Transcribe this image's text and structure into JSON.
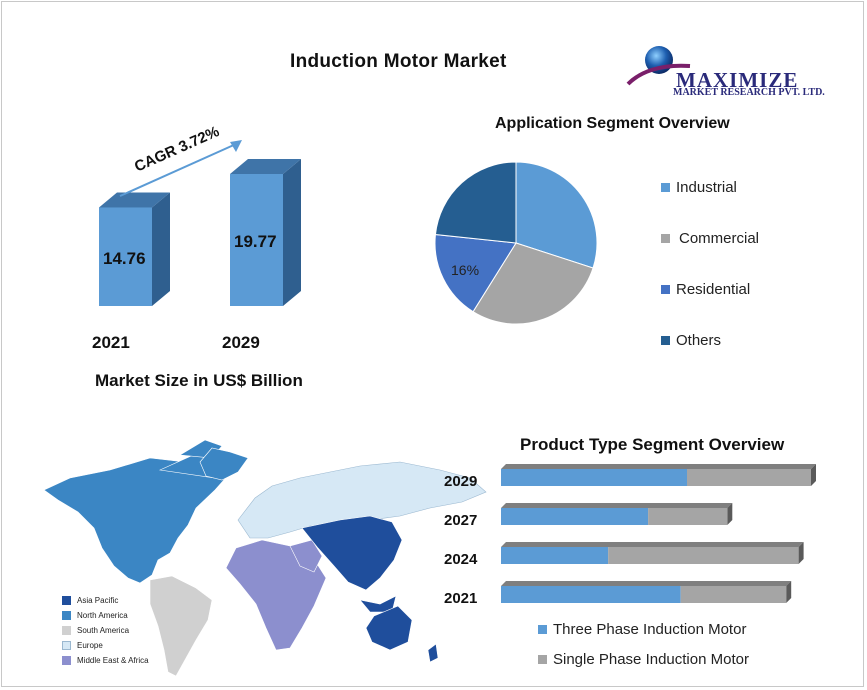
{
  "title": "Induction Motor Market",
  "logo": {
    "name": "MAXIMIZE",
    "tagline": "MARKET RESEARCH PVT. LTD."
  },
  "colors": {
    "three_phase": "#5b9bd5",
    "single_phase": "#a5a5a5",
    "industrial": "#5b9bd5",
    "commercial": "#a5a5a5",
    "residential": "#4472c4",
    "others": "#255e91"
  },
  "chart_data": [
    {
      "type": "bar",
      "categories": [
        "2021",
        "2029"
      ],
      "values": [
        14.76,
        19.77
      ],
      "data_labels": [
        "14.76",
        "19.77"
      ],
      "annotation": "CAGR 3.72%",
      "xlabel": "Market Size in US$ Billion"
    },
    {
      "type": "pie",
      "title": "Application Segment Overview",
      "labels": [
        "Industrial",
        "Commercial",
        "Residential",
        "Others"
      ],
      "values": [
        27,
        26,
        16,
        21
      ],
      "visible_label": "16%",
      "legend": "right"
    },
    {
      "type": "bar",
      "orientation": "horizontal",
      "stacked": true,
      "title": "Product Type Segment Overview",
      "categories": [
        "2029",
        "2027",
        "2024",
        "2021"
      ],
      "series": [
        {
          "name": "Three Phase Induction Motor",
          "values": [
            0.6,
            0.65,
            0.36,
            0.63
          ]
        },
        {
          "name": "Single Phase Induction Motor",
          "values": [
            0.4,
            0.35,
            0.64,
            0.37
          ]
        }
      ],
      "legend": "bottom"
    }
  ],
  "map_legend": [
    "Asia Pacific",
    "North America",
    "South America",
    "Europe",
    "Middle East & Africa"
  ],
  "map_colors": [
    "#1f4e9c",
    "#3b86c4",
    "#d0d0d0",
    "#d6e8f5",
    "#8c8fce"
  ]
}
